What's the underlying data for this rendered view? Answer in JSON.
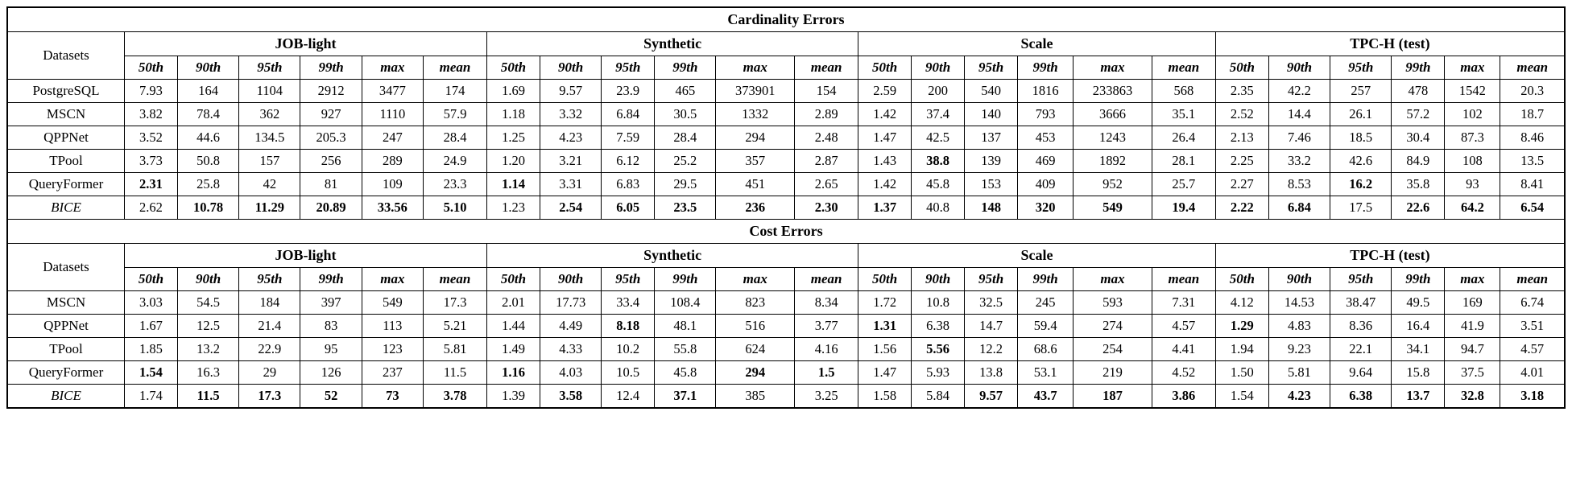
{
  "page": {
    "background": "#ffffff",
    "text_color": "#000000",
    "border_color": "#000000"
  },
  "tables": [
    {
      "title": "Cardinality Errors",
      "datasets_label": "Datasets",
      "groups": [
        "JOB-light",
        "Synthetic",
        "Scale",
        "TPC-H (test)"
      ],
      "percentiles": [
        "50th",
        "90th",
        "95th",
        "99th",
        "max",
        "mean"
      ],
      "rows": [
        {
          "name": "PostgreSQL",
          "italic": false,
          "values": [
            "7.93",
            "164",
            "1104",
            "2912",
            "3477",
            "174",
            "1.69",
            "9.57",
            "23.9",
            "465",
            "373901",
            "154",
            "2.59",
            "200",
            "540",
            "1816",
            "233863",
            "568",
            "2.35",
            "42.2",
            "257",
            "478",
            "1542",
            "20.3"
          ],
          "bold": []
        },
        {
          "name": "MSCN",
          "italic": false,
          "values": [
            "3.82",
            "78.4",
            "362",
            "927",
            "1110",
            "57.9",
            "1.18",
            "3.32",
            "6.84",
            "30.5",
            "1332",
            "2.89",
            "1.42",
            "37.4",
            "140",
            "793",
            "3666",
            "35.1",
            "2.52",
            "14.4",
            "26.1",
            "57.2",
            "102",
            "18.7"
          ],
          "bold": []
        },
        {
          "name": "QPPNet",
          "italic": false,
          "values": [
            "3.52",
            "44.6",
            "134.5",
            "205.3",
            "247",
            "28.4",
            "1.25",
            "4.23",
            "7.59",
            "28.4",
            "294",
            "2.48",
            "1.47",
            "42.5",
            "137",
            "453",
            "1243",
            "26.4",
            "2.13",
            "7.46",
            "18.5",
            "30.4",
            "87.3",
            "8.46"
          ],
          "bold": []
        },
        {
          "name": "TPool",
          "italic": false,
          "values": [
            "3.73",
            "50.8",
            "157",
            "256",
            "289",
            "24.9",
            "1.20",
            "3.21",
            "6.12",
            "25.2",
            "357",
            "2.87",
            "1.43",
            "38.8",
            "139",
            "469",
            "1892",
            "28.1",
            "2.25",
            "33.2",
            "42.6",
            "84.9",
            "108",
            "13.5"
          ],
          "bold": [
            13
          ]
        },
        {
          "name": "QueryFormer",
          "italic": false,
          "values": [
            "2.31",
            "25.8",
            "42",
            "81",
            "109",
            "23.3",
            "1.14",
            "3.31",
            "6.83",
            "29.5",
            "451",
            "2.65",
            "1.42",
            "45.8",
            "153",
            "409",
            "952",
            "25.7",
            "2.27",
            "8.53",
            "16.2",
            "35.8",
            "93",
            "8.41"
          ],
          "bold": [
            0,
            6,
            20
          ]
        },
        {
          "name": "BICE",
          "italic": true,
          "values": [
            "2.62",
            "10.78",
            "11.29",
            "20.89",
            "33.56",
            "5.10",
            "1.23",
            "2.54",
            "6.05",
            "23.5",
            "236",
            "2.30",
            "1.37",
            "40.8",
            "148",
            "320",
            "549",
            "19.4",
            "2.22",
            "6.84",
            "17.5",
            "22.6",
            "64.2",
            "6.54"
          ],
          "bold": [
            1,
            2,
            3,
            4,
            5,
            7,
            8,
            9,
            10,
            11,
            12,
            14,
            15,
            16,
            17,
            18,
            19,
            21,
            22,
            23
          ]
        }
      ]
    },
    {
      "title": "Cost Errors",
      "datasets_label": "Datasets",
      "groups": [
        "JOB-light",
        "Synthetic",
        "Scale",
        "TPC-H (test)"
      ],
      "percentiles": [
        "50th",
        "90th",
        "95th",
        "99th",
        "max",
        "mean"
      ],
      "rows": [
        {
          "name": "MSCN",
          "italic": false,
          "values": [
            "3.03",
            "54.5",
            "184",
            "397",
            "549",
            "17.3",
            "2.01",
            "17.73",
            "33.4",
            "108.4",
            "823",
            "8.34",
            "1.72",
            "10.8",
            "32.5",
            "245",
            "593",
            "7.31",
            "4.12",
            "14.53",
            "38.47",
            "49.5",
            "169",
            "6.74"
          ],
          "bold": []
        },
        {
          "name": "QPPNet",
          "italic": false,
          "values": [
            "1.67",
            "12.5",
            "21.4",
            "83",
            "113",
            "5.21",
            "1.44",
            "4.49",
            "8.18",
            "48.1",
            "516",
            "3.77",
            "1.31",
            "6.38",
            "14.7",
            "59.4",
            "274",
            "4.57",
            "1.29",
            "4.83",
            "8.36",
            "16.4",
            "41.9",
            "3.51"
          ],
          "bold": [
            8,
            12,
            18
          ]
        },
        {
          "name": "TPool",
          "italic": false,
          "values": [
            "1.85",
            "13.2",
            "22.9",
            "95",
            "123",
            "5.81",
            "1.49",
            "4.33",
            "10.2",
            "55.8",
            "624",
            "4.16",
            "1.56",
            "5.56",
            "12.2",
            "68.6",
            "254",
            "4.41",
            "1.94",
            "9.23",
            "22.1",
            "34.1",
            "94.7",
            "4.57"
          ],
          "bold": [
            13
          ]
        },
        {
          "name": "QueryFormer",
          "italic": false,
          "values": [
            "1.54",
            "16.3",
            "29",
            "126",
            "237",
            "11.5",
            "1.16",
            "4.03",
            "10.5",
            "45.8",
            "294",
            "1.5",
            "1.47",
            "5.93",
            "13.8",
            "53.1",
            "219",
            "4.52",
            "1.50",
            "5.81",
            "9.64",
            "15.8",
            "37.5",
            "4.01"
          ],
          "bold": [
            0,
            6,
            10,
            11
          ]
        },
        {
          "name": "BICE",
          "italic": true,
          "values": [
            "1.74",
            "11.5",
            "17.3",
            "52",
            "73",
            "3.78",
            "1.39",
            "3.58",
            "12.4",
            "37.1",
            "385",
            "3.25",
            "1.58",
            "5.84",
            "9.57",
            "43.7",
            "187",
            "3.86",
            "1.54",
            "4.23",
            "6.38",
            "13.7",
            "32.8",
            "3.18"
          ],
          "bold": [
            1,
            2,
            3,
            4,
            5,
            7,
            9,
            14,
            15,
            16,
            17,
            19,
            20,
            21,
            22,
            23
          ]
        }
      ]
    }
  ]
}
